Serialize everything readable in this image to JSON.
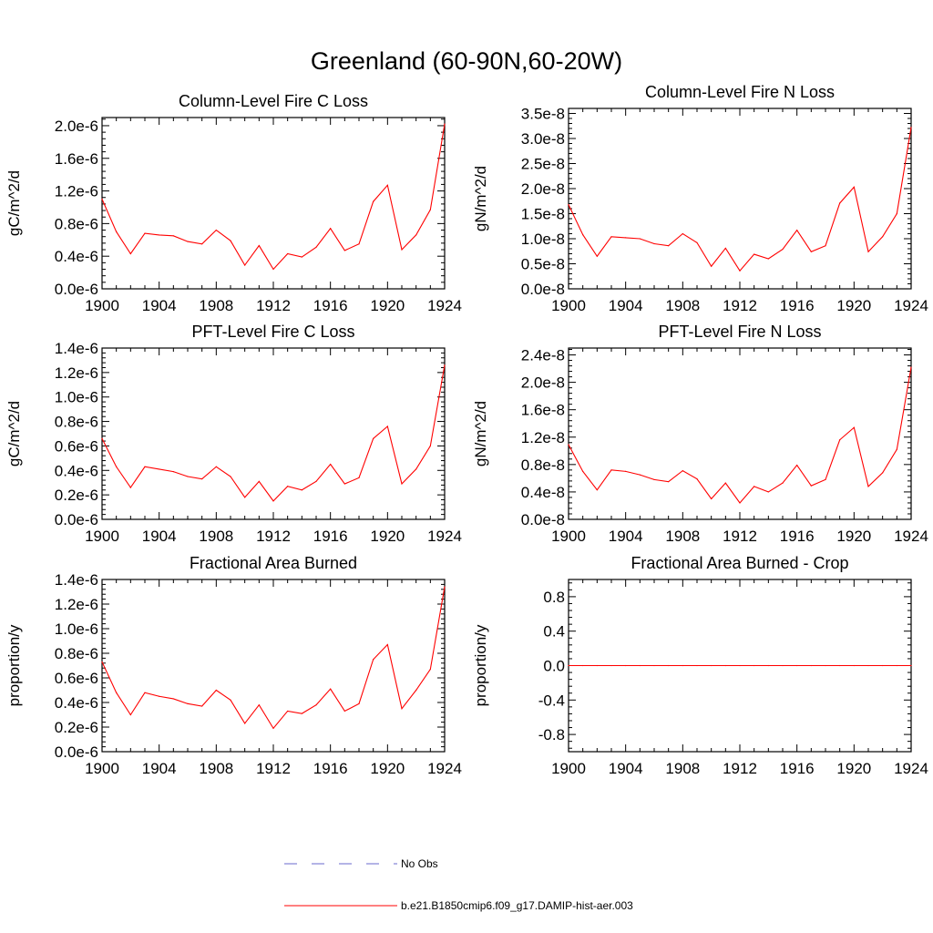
{
  "title": "Greenland (60-90N,60-20W)",
  "colors": {
    "model": "#ff0000",
    "obs": "#6a6acd",
    "axis": "#000000"
  },
  "legend": {
    "entries": [
      {
        "label": "No Obs",
        "style": "dashed",
        "color": "#6a6acd"
      },
      {
        "label": "b.e21.B1850cmip6.f09_g17.DAMIP-hist-aer.003",
        "style": "solid",
        "color": "#ff0000"
      }
    ]
  },
  "chart_data": [
    {
      "type": "line",
      "title": "Column-Level Fire C Loss",
      "ylabel": "gC/m^2/d",
      "xlim": [
        1900,
        1924
      ],
      "ylim": [
        0,
        2.1e-06
      ],
      "xticks": [
        1900,
        1904,
        1908,
        1912,
        1916,
        1920,
        1924
      ],
      "xtick_labels": [
        "1900",
        "1904",
        "1908",
        "1912",
        "1916",
        "1920",
        "1924"
      ],
      "yticks": [
        0,
        4e-07,
        8e-07,
        1.2e-06,
        1.6e-06,
        2e-06
      ],
      "ytick_labels": [
        "0.0e-6",
        "0.4e-6",
        "0.8e-6",
        "1.2e-6",
        "1.6e-6",
        "2.0e-6"
      ],
      "x": [
        1900,
        1901,
        1902,
        1903,
        1904,
        1905,
        1906,
        1907,
        1908,
        1909,
        1910,
        1911,
        1912,
        1913,
        1914,
        1915,
        1916,
        1917,
        1918,
        1919,
        1920,
        1921,
        1922,
        1923,
        1924
      ],
      "series": [
        {
          "name": "b.e21.B1850cmip6.f09_g17.DAMIP-hist-aer.003",
          "values": [
            1.1e-06,
            7e-07,
            4.3e-07,
            6.8e-07,
            6.6e-07,
            6.5e-07,
            5.8e-07,
            5.5e-07,
            7.2e-07,
            5.9e-07,
            2.9e-07,
            5.3e-07,
            2.4e-07,
            4.3e-07,
            3.9e-07,
            5.1e-07,
            7.4e-07,
            4.7e-07,
            5.5e-07,
            1.07e-06,
            1.27e-06,
            4.8e-07,
            6.6e-07,
            9.7e-07,
            2.02e-06
          ]
        }
      ]
    },
    {
      "type": "line",
      "title": "Column-Level Fire N Loss",
      "ylabel": "gN/m^2/d",
      "xlim": [
        1900,
        1924
      ],
      "ylim": [
        0,
        3.6e-08
      ],
      "xticks": [
        1900,
        1904,
        1908,
        1912,
        1916,
        1920,
        1924
      ],
      "xtick_labels": [
        "1900",
        "1904",
        "1908",
        "1912",
        "1916",
        "1920",
        "1924"
      ],
      "yticks": [
        0,
        5e-09,
        1e-08,
        1.5e-08,
        2e-08,
        2.5e-08,
        3e-08,
        3.5e-08
      ],
      "ytick_labels": [
        "0.0e-8",
        "0.5e-8",
        "1.0e-8",
        "1.5e-8",
        "2.0e-8",
        "2.5e-8",
        "3.0e-8",
        "3.5e-8"
      ],
      "x": [
        1900,
        1901,
        1902,
        1903,
        1904,
        1905,
        1906,
        1907,
        1908,
        1909,
        1910,
        1911,
        1912,
        1913,
        1914,
        1915,
        1916,
        1917,
        1918,
        1919,
        1920,
        1921,
        1922,
        1923,
        1924
      ],
      "series": [
        {
          "name": "b.e21.B1850cmip6.f09_g17.DAMIP-hist-aer.003",
          "values": [
            1.68e-08,
            1.08e-08,
            6.5e-09,
            1.04e-08,
            1.02e-08,
            1e-08,
            9e-09,
            8.6e-09,
            1.1e-08,
            9.2e-09,
            4.5e-09,
            8.1e-09,
            3.6e-09,
            6.9e-09,
            6e-09,
            7.9e-09,
            1.17e-08,
            7.4e-09,
            8.6e-09,
            1.71e-08,
            2.03e-08,
            7.4e-09,
            1.04e-08,
            1.5e-08,
            3.22e-08
          ]
        }
      ]
    },
    {
      "type": "line",
      "title": "PFT-Level Fire C Loss",
      "ylabel": "gC/m^2/d",
      "xlim": [
        1900,
        1924
      ],
      "ylim": [
        0,
        1.4e-06
      ],
      "xticks": [
        1900,
        1904,
        1908,
        1912,
        1916,
        1920,
        1924
      ],
      "xtick_labels": [
        "1900",
        "1904",
        "1908",
        "1912",
        "1916",
        "1920",
        "1924"
      ],
      "yticks": [
        0,
        2e-07,
        4e-07,
        6e-07,
        8e-07,
        1e-06,
        1.2e-06,
        1.4e-06
      ],
      "ytick_labels": [
        "0.0e-6",
        "0.2e-6",
        "0.4e-6",
        "0.6e-6",
        "0.8e-6",
        "1.0e-6",
        "1.2e-6",
        "1.4e-6"
      ],
      "x": [
        1900,
        1901,
        1902,
        1903,
        1904,
        1905,
        1906,
        1907,
        1908,
        1909,
        1910,
        1911,
        1912,
        1913,
        1914,
        1915,
        1916,
        1917,
        1918,
        1919,
        1920,
        1921,
        1922,
        1923,
        1924
      ],
      "series": [
        {
          "name": "b.e21.B1850cmip6.f09_g17.DAMIP-hist-aer.003",
          "values": [
            6.6e-07,
            4.3e-07,
            2.6e-07,
            4.3e-07,
            4.1e-07,
            3.9e-07,
            3.5e-07,
            3.3e-07,
            4.3e-07,
            3.5e-07,
            1.8e-07,
            3.1e-07,
            1.5e-07,
            2.7e-07,
            2.4e-07,
            3.1e-07,
            4.5e-07,
            2.9e-07,
            3.4e-07,
            6.6e-07,
            7.6e-07,
            2.9e-07,
            4.1e-07,
            6e-07,
            1.26e-06
          ]
        }
      ]
    },
    {
      "type": "line",
      "title": "PFT-Level Fire N Loss",
      "ylabel": "gN/m^2/d",
      "xlim": [
        1900,
        1924
      ],
      "ylim": [
        0,
        2.5e-08
      ],
      "xticks": [
        1900,
        1904,
        1908,
        1912,
        1916,
        1920,
        1924
      ],
      "xtick_labels": [
        "1900",
        "1904",
        "1908",
        "1912",
        "1916",
        "1920",
        "1924"
      ],
      "yticks": [
        0,
        4e-09,
        8e-09,
        1.2e-08,
        1.6e-08,
        2e-08,
        2.4e-08
      ],
      "ytick_labels": [
        "0.0e-8",
        "0.4e-8",
        "0.8e-8",
        "1.2e-8",
        "1.6e-8",
        "2.0e-8",
        "2.4e-8"
      ],
      "x": [
        1900,
        1901,
        1902,
        1903,
        1904,
        1905,
        1906,
        1907,
        1908,
        1909,
        1910,
        1911,
        1912,
        1913,
        1914,
        1915,
        1916,
        1917,
        1918,
        1919,
        1920,
        1921,
        1922,
        1923,
        1924
      ],
      "series": [
        {
          "name": "b.e21.B1850cmip6.f09_g17.DAMIP-hist-aer.003",
          "values": [
            1.09e-08,
            7e-09,
            4.3e-09,
            7.2e-09,
            7e-09,
            6.5e-09,
            5.8e-09,
            5.5e-09,
            7.1e-09,
            5.9e-09,
            3e-09,
            5.3e-09,
            2.4e-09,
            4.8e-09,
            4e-09,
            5.3e-09,
            7.9e-09,
            4.9e-09,
            5.8e-09,
            1.16e-08,
            1.34e-08,
            4.8e-09,
            6.8e-09,
            1.02e-08,
            2.22e-08
          ]
        }
      ]
    },
    {
      "type": "line",
      "title": "Fractional Area Burned",
      "ylabel": "proportion/y",
      "xlim": [
        1900,
        1924
      ],
      "ylim": [
        0,
        1.4e-06
      ],
      "xticks": [
        1900,
        1904,
        1908,
        1912,
        1916,
        1920,
        1924
      ],
      "xtick_labels": [
        "1900",
        "1904",
        "1908",
        "1912",
        "1916",
        "1920",
        "1924"
      ],
      "yticks": [
        0,
        2e-07,
        4e-07,
        6e-07,
        8e-07,
        1e-06,
        1.2e-06,
        1.4e-06
      ],
      "ytick_labels": [
        "0.0e-6",
        "0.2e-6",
        "0.4e-6",
        "0.6e-6",
        "0.8e-6",
        "1.0e-6",
        "1.2e-6",
        "1.4e-6"
      ],
      "x": [
        1900,
        1901,
        1902,
        1903,
        1904,
        1905,
        1906,
        1907,
        1908,
        1909,
        1910,
        1911,
        1912,
        1913,
        1914,
        1915,
        1916,
        1917,
        1918,
        1919,
        1920,
        1921,
        1922,
        1923,
        1924
      ],
      "series": [
        {
          "name": "b.e21.B1850cmip6.f09_g17.DAMIP-hist-aer.003",
          "values": [
            7.3e-07,
            4.8e-07,
            3e-07,
            4.8e-07,
            4.5e-07,
            4.3e-07,
            3.9e-07,
            3.7e-07,
            5e-07,
            4.2e-07,
            2.3e-07,
            3.8e-07,
            1.9e-07,
            3.3e-07,
            3.1e-07,
            3.8e-07,
            5.1e-07,
            3.3e-07,
            3.9e-07,
            7.5e-07,
            8.7e-07,
            3.5e-07,
            5e-07,
            6.7e-07,
            1.34e-06
          ]
        }
      ]
    },
    {
      "type": "line",
      "title": "Fractional Area Burned - Crop",
      "ylabel": "proportion/y",
      "xlim": [
        1900,
        1924
      ],
      "ylim": [
        -1.0,
        1.0
      ],
      "xticks": [
        1900,
        1904,
        1908,
        1912,
        1916,
        1920,
        1924
      ],
      "xtick_labels": [
        "1900",
        "1904",
        "1908",
        "1912",
        "1916",
        "1920",
        "1924"
      ],
      "yticks": [
        -0.8,
        -0.4,
        0.0,
        0.4,
        0.8
      ],
      "ytick_labels": [
        "-0.8",
        "-0.4",
        "0.0",
        "0.4",
        "0.8"
      ],
      "x": [
        1900,
        1901,
        1902,
        1903,
        1904,
        1905,
        1906,
        1907,
        1908,
        1909,
        1910,
        1911,
        1912,
        1913,
        1914,
        1915,
        1916,
        1917,
        1918,
        1919,
        1920,
        1921,
        1922,
        1923,
        1924
      ],
      "series": [
        {
          "name": "b.e21.B1850cmip6.f09_g17.DAMIP-hist-aer.003",
          "values": [
            0,
            0,
            0,
            0,
            0,
            0,
            0,
            0,
            0,
            0,
            0,
            0,
            0,
            0,
            0,
            0,
            0,
            0,
            0,
            0,
            0,
            0,
            0,
            0,
            0
          ]
        }
      ]
    }
  ]
}
